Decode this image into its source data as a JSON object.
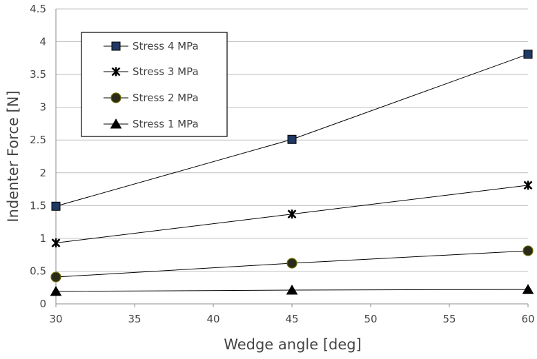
{
  "chart_data": {
    "type": "line",
    "xlabel": "Wedge angle [deg]",
    "ylabel": "Indenter Force [N]",
    "xlim": [
      30,
      60
    ],
    "ylim": [
      0,
      4.5
    ],
    "xticks": [
      30,
      35,
      40,
      45,
      50,
      55,
      60
    ],
    "yticks": [
      0,
      0.5,
      1,
      1.5,
      2,
      2.5,
      3,
      3.5,
      4,
      4.5
    ],
    "ytick_labels": [
      "0",
      "0.5",
      "1",
      "1.5",
      "2",
      "2.5",
      "3",
      "3.5",
      "4",
      "4.5"
    ],
    "grid": "horizontal",
    "legend_position": "top-left",
    "x": [
      30,
      45,
      60
    ],
    "series": [
      {
        "name": "Stress 4 MPa",
        "marker": "square",
        "fill": "#1f3864",
        "values": [
          1.49,
          2.51,
          3.81
        ]
      },
      {
        "name": "Stress 3 MPa",
        "marker": "asterisk",
        "fill": "#000000",
        "values": [
          0.93,
          1.37,
          1.81
        ]
      },
      {
        "name": "Stress 2 MPa",
        "marker": "circle",
        "fill": "#2a2a1a",
        "values": [
          0.41,
          0.62,
          0.81
        ]
      },
      {
        "name": "Stress 1 MPa",
        "marker": "triangle",
        "fill": "#000000",
        "values": [
          0.19,
          0.21,
          0.22
        ]
      }
    ]
  }
}
